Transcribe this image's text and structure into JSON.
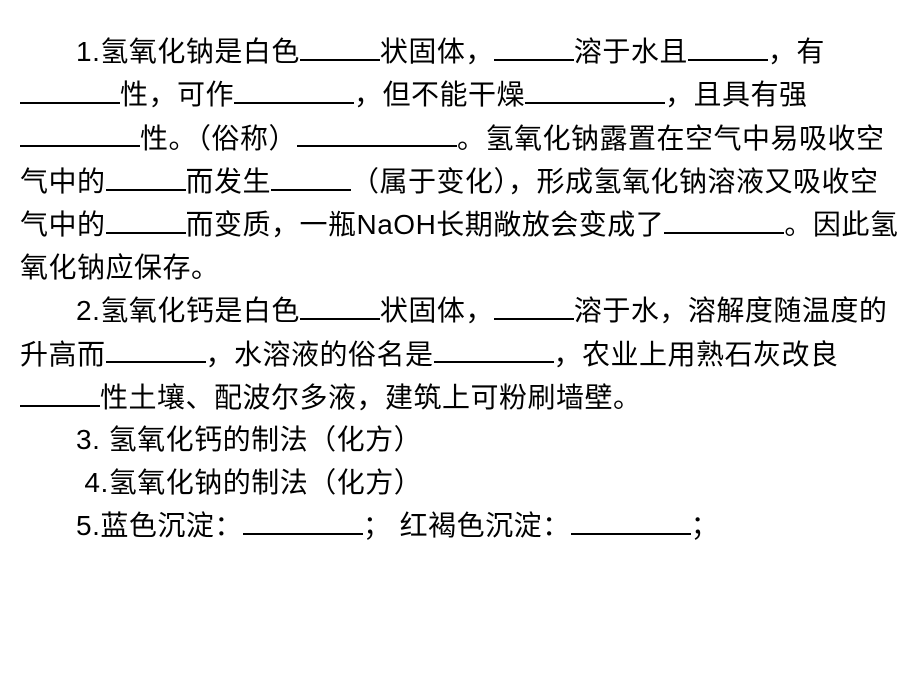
{
  "document": {
    "background_color": "#ffffff",
    "text_color": "#000000",
    "font_size": 28,
    "line_height": 1.52,
    "text_indent_em": 2,
    "blank_border_color": "#000000",
    "blank_border_width": 2,
    "paragraphs": [
      {
        "type": "fill-in-blank",
        "number": "1",
        "segments": [
          {
            "text": "1.氢氧化钠是白色"
          },
          {
            "blank": true,
            "width": "w2"
          },
          {
            "text": "状固体，"
          },
          {
            "blank": true,
            "width": "w2"
          },
          {
            "text": "溶于水且"
          },
          {
            "blank": true,
            "width": "w2"
          },
          {
            "text": "，有"
          },
          {
            "blank": true,
            "width": "w3"
          },
          {
            "text": "性，可作"
          },
          {
            "blank": true,
            "width": "w4"
          },
          {
            "text": "，但不能干燥"
          },
          {
            "blank": true,
            "width": "w5"
          },
          {
            "text": "，且具有强"
          },
          {
            "blank": true,
            "width": "w4"
          },
          {
            "text": "性。（俗称）"
          },
          {
            "blank": true,
            "width": "w6"
          },
          {
            "text": "。氢氧化钠露置在空气中易吸收空气中的"
          },
          {
            "blank": true,
            "width": "w2"
          },
          {
            "text": "而发生"
          },
          {
            "blank": true,
            "width": "w2"
          },
          {
            "text": "（属于变化），形成氢氧化钠溶液又吸收空气中的"
          },
          {
            "blank": true,
            "width": "w2"
          },
          {
            "text": "而变质，一瓶NaOH长期敞放会变成了"
          },
          {
            "blank": true,
            "width": "w4"
          },
          {
            "text": "。因此氢氧化钠应保存。"
          }
        ]
      },
      {
        "type": "fill-in-blank",
        "number": "2",
        "segments": [
          {
            "text": "2.氢氧化钙是白色"
          },
          {
            "blank": true,
            "width": "w2"
          },
          {
            "text": "状固体，"
          },
          {
            "blank": true,
            "width": "w2"
          },
          {
            "text": "溶于水，溶解度随温度的升高而"
          },
          {
            "blank": true,
            "width": "w3"
          },
          {
            "text": "，水溶液的俗名是"
          },
          {
            "blank": true,
            "width": "w4"
          },
          {
            "text": "，农业上用熟石灰改良"
          },
          {
            "blank": true,
            "width": "w2"
          },
          {
            "text": "性土壤、配波尔多液，建筑上可粉刷墙壁。"
          }
        ]
      },
      {
        "type": "text",
        "number": "3",
        "text": "3. 氢氧化钙的制法（化方）"
      },
      {
        "type": "text",
        "number": "4",
        "text": "4.氢氧化钠的制法（化方）",
        "indent": "sub"
      },
      {
        "type": "fill-in-blank",
        "number": "5",
        "segments": [
          {
            "text": "5.蓝色沉淀："
          },
          {
            "blank": true,
            "width": "w4"
          },
          {
            "text": "；   红褐色沉淀："
          },
          {
            "blank": true,
            "width": "w4"
          },
          {
            "text": "；"
          }
        ]
      }
    ]
  }
}
